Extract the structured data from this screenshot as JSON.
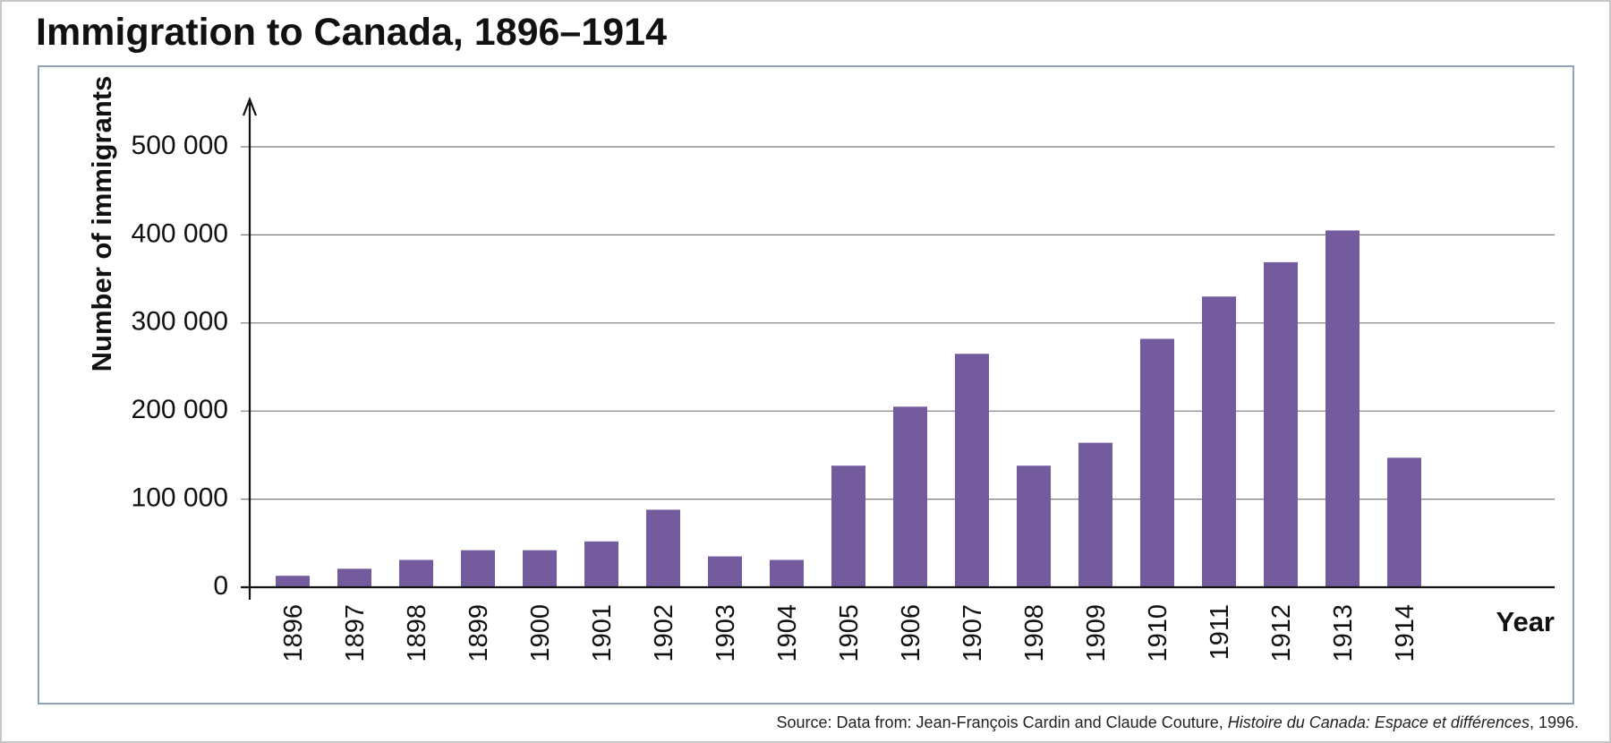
{
  "title": "Immigration to Canada, 1896–1914",
  "source": {
    "prefix": "Source: Data from: Jean-François Cardin and Claude Couture, ",
    "work": "Histoire du Canada: Espace et différences",
    "suffix": ", 1996."
  },
  "colors": {
    "bar": "#735b9d",
    "grid": "#7a7a7a",
    "axis": "#111111",
    "frame": "#8fa3bb"
  },
  "chart_data": {
    "type": "bar",
    "title": "Immigration to Canada, 1896–1914",
    "xlabel": "Year",
    "ylabel": "Number of immigrants",
    "categories": [
      "1896",
      "1897",
      "1898",
      "1899",
      "1900",
      "1901",
      "1902",
      "1903",
      "1904",
      "1905",
      "1906",
      "1907",
      "1908",
      "1909",
      "1910",
      "1911",
      "1912",
      "1913",
      "1914"
    ],
    "values": [
      13000,
      21000,
      31000,
      42000,
      42000,
      52000,
      88000,
      35000,
      31000,
      138000,
      205000,
      265000,
      138000,
      164000,
      282000,
      330000,
      369000,
      405000,
      147000
    ],
    "ylim": [
      0,
      500000
    ],
    "yticks": [
      0,
      100000,
      200000,
      300000,
      400000,
      500000
    ],
    "ytick_labels": [
      "0",
      "100 000",
      "200 000",
      "300 000",
      "400 000",
      "500 000"
    ],
    "grid": true,
    "legend": "none"
  }
}
